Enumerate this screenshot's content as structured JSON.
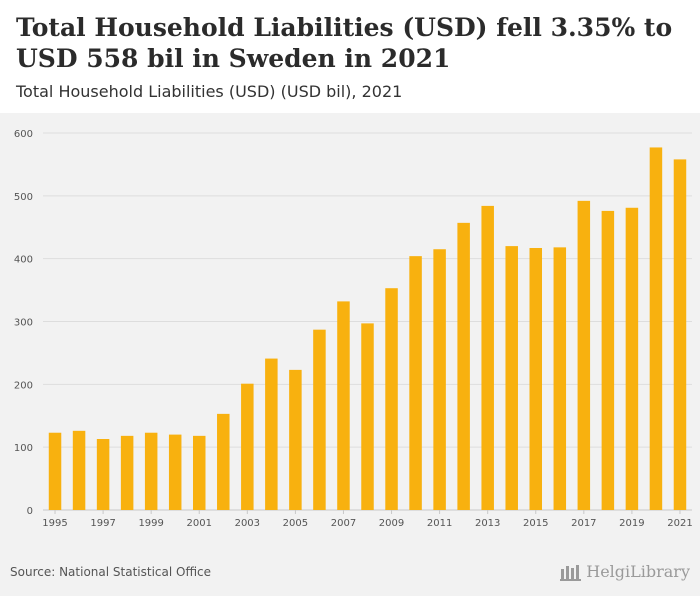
{
  "header": {
    "title": "Total Household Liabilities (USD) fell 3.35% to USD 558 bil in Sweden in 2021",
    "subtitle": "Total Household Liabilities (USD) (USD bil), 2021"
  },
  "footer": {
    "source": "Source: National Statistical Office",
    "logo_text": "HelgiLibrary"
  },
  "colors": {
    "bar": "#f8b10f",
    "grid": "#dddddd",
    "background": "#f2f2f2",
    "axis_text": "#555555"
  },
  "chart_data": {
    "type": "bar",
    "title": "Total Household Liabilities (USD) (USD bil), 2021",
    "xlabel": "",
    "ylabel": "",
    "ylim": [
      0,
      600
    ],
    "yticks": [
      0,
      100,
      200,
      300,
      400,
      500,
      600
    ],
    "categories": [
      "1995",
      "1996",
      "1997",
      "1998",
      "1999",
      "2000",
      "2001",
      "2002",
      "2003",
      "2004",
      "2005",
      "2006",
      "2007",
      "2008",
      "2009",
      "2010",
      "2011",
      "2012",
      "2013",
      "2014",
      "2015",
      "2016",
      "2017",
      "2018",
      "2019",
      "2020",
      "2021"
    ],
    "xtick_labels": [
      "1995",
      "1997",
      "1999",
      "2001",
      "2003",
      "2005",
      "2007",
      "2009",
      "2011",
      "2013",
      "2015",
      "2017",
      "2019",
      "2021"
    ],
    "values": [
      123,
      126,
      113,
      118,
      123,
      120,
      118,
      153,
      201,
      241,
      223,
      287,
      332,
      297,
      353,
      404,
      415,
      457,
      484,
      420,
      417,
      418,
      492,
      476,
      481,
      577,
      558
    ]
  }
}
